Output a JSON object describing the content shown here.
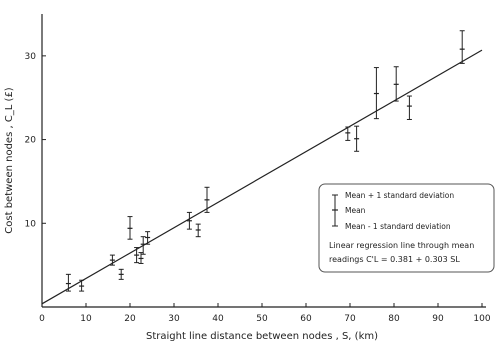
{
  "chart_data": {
    "type": "scatter",
    "title": "",
    "xlabel": "Straight line distance between nodes , S, (km)",
    "ylabel": "Cost between nodes , C_L (£)",
    "xlim": [
      0,
      100
    ],
    "ylim": [
      0,
      35
    ],
    "x_ticks": [
      0,
      10,
      20,
      30,
      40,
      50,
      60,
      70,
      80,
      90,
      100
    ],
    "y_ticks": [
      10,
      20,
      30
    ],
    "grid": false,
    "legend_position": "right",
    "series": [
      {
        "points": [
          {
            "x": 6,
            "mean": 2.8,
            "upper": 3.9,
            "lower": 1.9
          },
          {
            "x": 9,
            "mean": 2.5,
            "upper": 3.2,
            "lower": 1.9
          },
          {
            "x": 16,
            "mean": 5.6,
            "upper": 6.2,
            "lower": 5.0
          },
          {
            "x": 18,
            "mean": 3.9,
            "upper": 4.5,
            "lower": 3.3
          },
          {
            "x": 20,
            "mean": 9.4,
            "upper": 10.8,
            "lower": 8.1
          },
          {
            "x": 21.5,
            "mean": 6.2,
            "upper": 7.1,
            "lower": 5.3
          },
          {
            "x": 22.5,
            "mean": 5.8,
            "upper": 6.5,
            "lower": 5.2
          },
          {
            "x": 23,
            "mean": 7.5,
            "upper": 8.4,
            "lower": 6.3
          },
          {
            "x": 24,
            "mean": 8.3,
            "upper": 9.0,
            "lower": 7.5
          },
          {
            "x": 33.5,
            "mean": 10.3,
            "upper": 11.3,
            "lower": 9.3
          },
          {
            "x": 35.5,
            "mean": 9.2,
            "upper": 9.9,
            "lower": 8.4
          },
          {
            "x": 37.5,
            "mean": 12.8,
            "upper": 14.3,
            "lower": 11.3
          },
          {
            "x": 69.5,
            "mean": 20.8,
            "upper": 21.5,
            "lower": 19.9
          },
          {
            "x": 71.5,
            "mean": 20.1,
            "upper": 21.6,
            "lower": 18.6
          },
          {
            "x": 76,
            "mean": 25.5,
            "upper": 28.6,
            "lower": 22.5
          },
          {
            "x": 80.5,
            "mean": 26.6,
            "upper": 28.7,
            "lower": 24.6
          },
          {
            "x": 83.5,
            "mean": 24.0,
            "upper": 25.2,
            "lower": 22.4
          },
          {
            "x": 95.5,
            "mean": 30.8,
            "upper": 33.0,
            "lower": 29.1
          }
        ]
      }
    ],
    "regression": {
      "intercept": 0.381,
      "slope": 0.303
    },
    "legend": {
      "upper": "Mean + 1 standard deviation",
      "mean": "Mean",
      "lower": "Mean - 1 standard deviation",
      "line_note": "Linear regression line through mean",
      "equation": "readings C'L = 0.381 + 0.303 SL"
    }
  }
}
